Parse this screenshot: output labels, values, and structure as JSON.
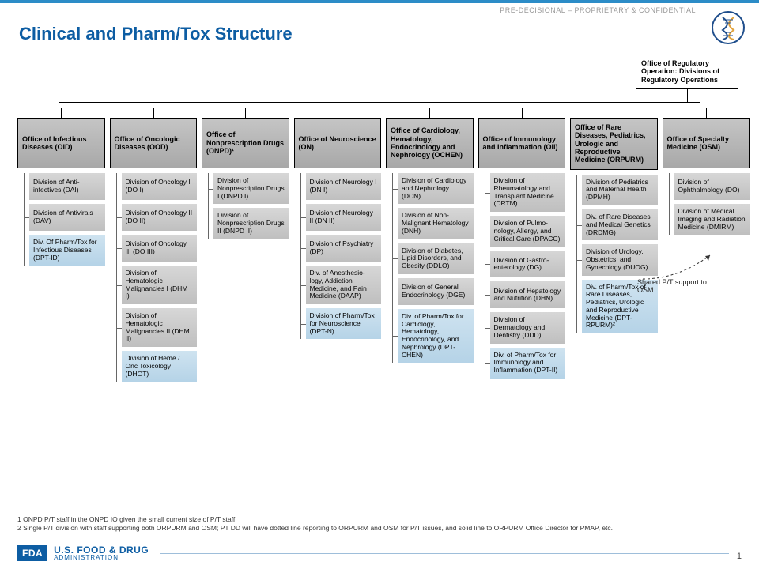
{
  "header": {
    "classification": "PRE-DECISIONAL  – PROPRIETARY  & CONFIDENTIAL",
    "title": "Clinical and Pharm/Tox Structure",
    "callout": "Office of Regulatory Operation: Divisions of Regulatory Operations"
  },
  "colors": {
    "accent": "#0d5da3",
    "topbar": "#2c8cc7",
    "office_bg": "#b7b7b7",
    "division_bg": "#cacaca",
    "pt_bg": "#c3dced",
    "border": "#000000",
    "text_muted": "#9a9a9a"
  },
  "layout": {
    "type": "org-chart",
    "columns": 8,
    "fontsize_office": 9,
    "fontsize_division": 8.5,
    "fontsize_title": 22
  },
  "offices": [
    {
      "label": "Office of Infectious Diseases (OID)",
      "divisions": [
        {
          "label": "Division of Anti-infectives (DAI)",
          "pt": false
        },
        {
          "label": "Division of Antivirals (DAV)",
          "pt": false
        },
        {
          "label": "Div. Of Pharm/Tox for Infectious Diseases (DPT-ID)",
          "pt": true
        }
      ]
    },
    {
      "label": "Office of Oncologic Diseases (OOD)",
      "divisions": [
        {
          "label": "Division of Oncology I (DO I)",
          "pt": false
        },
        {
          "label": "Division of Oncology II (DO II)",
          "pt": false
        },
        {
          "label": "Division of Oncology III (DO III)",
          "pt": false
        },
        {
          "label": "Division of Hematologic Malignancies I (DHM I)",
          "pt": false
        },
        {
          "label": "Division of Hematologic Malignancies II (DHM II)",
          "pt": false
        },
        {
          "label": "Division of Heme / Onc Toxicology (DHOT)",
          "pt": true
        }
      ]
    },
    {
      "label": "Office of Nonprescription Drugs (ONPD)¹",
      "divisions": [
        {
          "label": "Division of Nonprescription Drugs I (DNPD I)",
          "pt": false
        },
        {
          "label": "Division of Nonprescription Drugs II (DNPD II)",
          "pt": false
        }
      ]
    },
    {
      "label": "Office of Neuroscience (ON)",
      "divisions": [
        {
          "label": "Division of Neurology I (DN I)",
          "pt": false
        },
        {
          "label": "Division of Neurology II (DN II)",
          "pt": false
        },
        {
          "label": "Division of Psychiatry (DP)",
          "pt": false
        },
        {
          "label": "Div. of Anesthesio-logy, Addiction Medicine, and Pain Medicine (DAAP)",
          "pt": false
        },
        {
          "label": "Division of Pharm/Tox for Neuroscience (DPT-N)",
          "pt": true
        }
      ]
    },
    {
      "label": "Office of Cardiology, Hematology, Endocrinology and Nephrology (OCHEN)",
      "divisions": [
        {
          "label": "Division of Cardiology and Nephrology (DCN)",
          "pt": false
        },
        {
          "label": "Division of Non-Malignant Hematology (DNH)",
          "pt": false
        },
        {
          "label": "Division of Diabetes, Lipid Disorders, and Obesity (DDLO)",
          "pt": false
        },
        {
          "label": "Division of General Endocrinology (DGE)",
          "pt": false
        },
        {
          "label": "Div. of Pharm/Tox for Cardiology, Hematology, Endocrinology, and Nephrology (DPT-CHEN)",
          "pt": true
        }
      ]
    },
    {
      "label": "Office of Immunology and Inflammation (OII)",
      "divisions": [
        {
          "label": "Division of Rheumatology and Transplant Medicine (DRTM)",
          "pt": false
        },
        {
          "label": "Division of Pulmo-nology, Allergy, and Critical Care (DPACC)",
          "pt": false
        },
        {
          "label": "Division of Gastro-enterology (DG)",
          "pt": false
        },
        {
          "label": "Division of Hepatology and Nutrition (DHN)",
          "pt": false
        },
        {
          "label": "Division of Dermatology and Dentistry (DDD)",
          "pt": false
        },
        {
          "label": "Div. of Pharm/Tox for Immunology and Inflammation (DPT-II)",
          "pt": true
        }
      ]
    },
    {
      "label": "Office of Rare Diseases, Pediatrics, Urologic and Reproductive Medicine (ORPURM)",
      "divisions": [
        {
          "label": "Division of Pediatrics and Maternal Health (DPMH)",
          "pt": false
        },
        {
          "label": "Div. of Rare Diseases and Medical Genetics (DRDMG)",
          "pt": false
        },
        {
          "label": "Division of Urology, Obstetrics, and Gynecology (DUOG)",
          "pt": false
        },
        {
          "label": "Div. of Pharm/Tox of Rare Diseases, Pediatrics, Urologic and Reproductive Medicine (DPT-RPURM)²",
          "pt": true
        }
      ]
    },
    {
      "label": "Office of Specialty Medicine (OSM)",
      "divisions": [
        {
          "label": "Division of Ophthalmology (DO)",
          "pt": false
        },
        {
          "label": "Division of Medical Imaging and Radiation Medicine (DMIRM)",
          "pt": false
        }
      ]
    }
  ],
  "share_note": "Shared P/T support to OSM",
  "footnotes": [
    "1 ONPD P/T staff in the ONPD IO given the small current size of P/T staff.",
    "2 Single P/T division with staff supporting both ORPURM and OSM; PT DD will have dotted line reporting to ORPURM and OSM for P/T issues, and solid line to ORPURM Office Director for PMAP, etc."
  ],
  "footer": {
    "badge": "FDA",
    "main": "U.S. FOOD & DRUG",
    "sub": "ADMINISTRATION",
    "page": "1"
  }
}
